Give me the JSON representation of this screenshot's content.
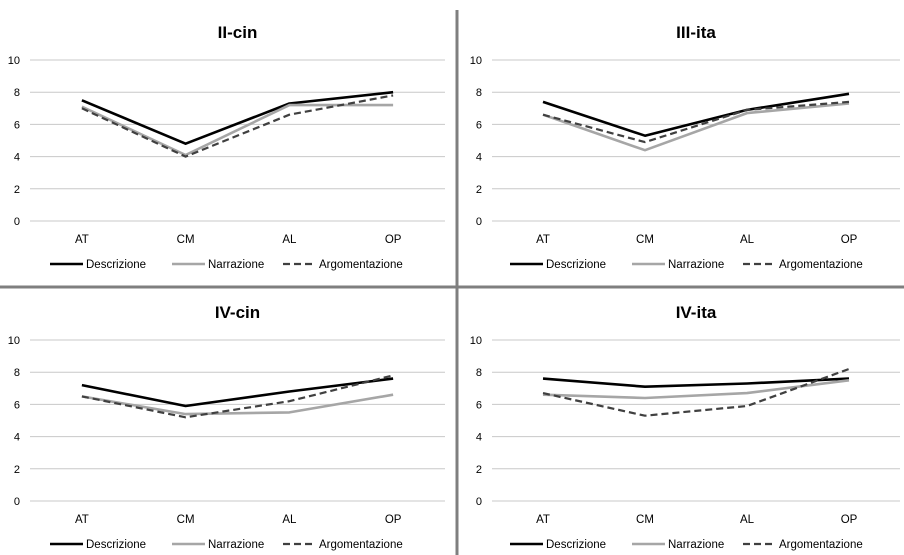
{
  "chart_data": [
    {
      "type": "line",
      "title": "II-cin",
      "categories": [
        "AT",
        "CM",
        "AL",
        "OP"
      ],
      "ylim": [
        0,
        10
      ],
      "yticks": [
        0,
        2,
        4,
        6,
        8,
        10
      ],
      "grid": true,
      "legend": "bottom",
      "series": [
        {
          "name": "Descrizione",
          "values": [
            7.5,
            4.8,
            7.3,
            8.0
          ],
          "color": "#000000",
          "style": "solid"
        },
        {
          "name": "Narrazione",
          "values": [
            7.1,
            4.1,
            7.2,
            7.2
          ],
          "color": "#a6a6a6",
          "style": "solid"
        },
        {
          "name": "Argomentazione",
          "values": [
            7.0,
            4.0,
            6.6,
            7.8
          ],
          "color": "#404040",
          "style": "dashed"
        }
      ]
    },
    {
      "type": "line",
      "title": "III-ita",
      "categories": [
        "AT",
        "CM",
        "AL",
        "OP"
      ],
      "ylim": [
        0,
        10
      ],
      "yticks": [
        0,
        2,
        4,
        6,
        8,
        10
      ],
      "grid": true,
      "legend": "bottom",
      "series": [
        {
          "name": "Descrizione",
          "values": [
            7.4,
            5.3,
            6.9,
            7.9
          ],
          "color": "#000000",
          "style": "solid"
        },
        {
          "name": "Narrazione",
          "values": [
            6.6,
            4.4,
            6.7,
            7.3
          ],
          "color": "#a6a6a6",
          "style": "solid"
        },
        {
          "name": "Argomentazione",
          "values": [
            6.6,
            4.9,
            6.9,
            7.4
          ],
          "color": "#404040",
          "style": "dashed"
        }
      ]
    },
    {
      "type": "line",
      "title": "IV-cin",
      "categories": [
        "AT",
        "CM",
        "AL",
        "OP"
      ],
      "ylim": [
        0,
        10
      ],
      "yticks": [
        0,
        2,
        4,
        6,
        8,
        10
      ],
      "grid": true,
      "legend": "bottom",
      "series": [
        {
          "name": "Descrizione",
          "values": [
            7.2,
            5.9,
            6.8,
            7.6
          ],
          "color": "#000000",
          "style": "solid"
        },
        {
          "name": "Narrazione",
          "values": [
            6.5,
            5.4,
            5.5,
            6.6
          ],
          "color": "#a6a6a6",
          "style": "solid"
        },
        {
          "name": "Argomentazione",
          "values": [
            6.5,
            5.2,
            6.2,
            7.8
          ],
          "color": "#404040",
          "style": "dashed"
        }
      ]
    },
    {
      "type": "line",
      "title": "IV-ita",
      "categories": [
        "AT",
        "CM",
        "AL",
        "OP"
      ],
      "ylim": [
        0,
        10
      ],
      "yticks": [
        0,
        2,
        4,
        6,
        8,
        10
      ],
      "grid": true,
      "legend": "bottom",
      "series": [
        {
          "name": "Descrizione",
          "values": [
            7.6,
            7.1,
            7.3,
            7.6
          ],
          "color": "#000000",
          "style": "solid"
        },
        {
          "name": "Narrazione",
          "values": [
            6.6,
            6.4,
            6.7,
            7.5
          ],
          "color": "#a6a6a6",
          "style": "solid"
        },
        {
          "name": "Argomentazione",
          "values": [
            6.7,
            5.3,
            5.9,
            8.2
          ],
          "color": "#404040",
          "style": "dashed"
        }
      ]
    }
  ]
}
